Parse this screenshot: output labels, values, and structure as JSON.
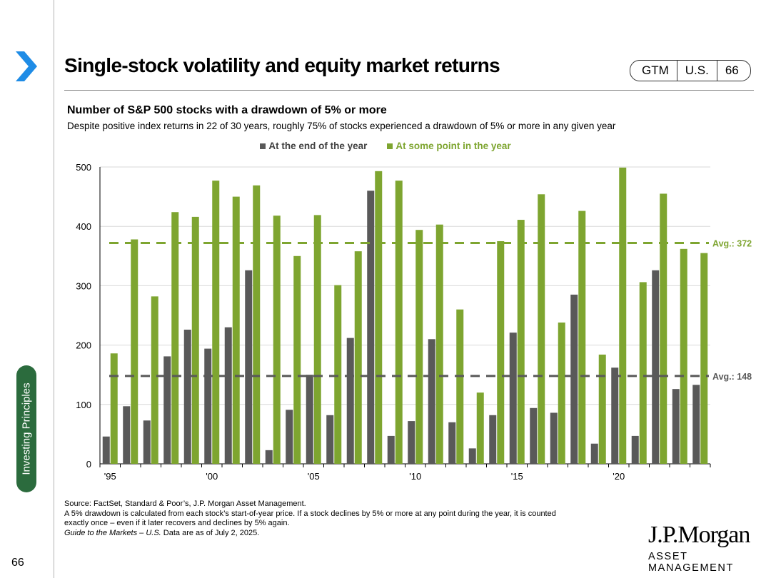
{
  "header": {
    "title": "Single-stock volatility and equity market returns",
    "tags": [
      "GTM",
      "U.S.",
      "66"
    ]
  },
  "side_label": "Investing Principles",
  "footer": {
    "source": "Source: FactSet, Standard & Poor’s, J.P. Morgan Asset Management.",
    "note_line1": "A 5% drawdown is calculated from each stock’s start-of-year price. If a stock declines by 5% or more at any point during the year, it is counted",
    "note_line2": "exactly once – even if it later recovers and declines by 5% again.",
    "guide_italic": "Guide to the Markets – U.S.",
    "guide_rest": " Data are as of July 2, 2025.",
    "page_number": "66"
  },
  "brand": {
    "name": "J.P.Morgan",
    "sub": "ASSET MANAGEMENT"
  },
  "colors": {
    "end_of_year": "#595959",
    "some_point": "#7ea530",
    "side_label_bg": "#2b6b3d",
    "arrow": "#1f8ce6"
  },
  "chart_data": {
    "type": "bar",
    "title": "Number of S&P 500 stocks with a drawdown of 5% or more",
    "subtitle": "Despite positive index returns in 22 of 30 years, roughly 75% of stocks experienced a drawdown of 5% or more in any given year",
    "categories": [
      "1995",
      "1996",
      "1997",
      "1998",
      "1999",
      "2000",
      "2001",
      "2002",
      "2003",
      "2004",
      "2005",
      "2006",
      "2007",
      "2008",
      "2009",
      "2010",
      "2011",
      "2012",
      "2013",
      "2014",
      "2015",
      "2016",
      "2017",
      "2018",
      "2019",
      "2020",
      "2021",
      "2022",
      "2023",
      "2024"
    ],
    "x_tick_labels": [
      {
        "index": 0,
        "label": "'95"
      },
      {
        "index": 5,
        "label": "'00"
      },
      {
        "index": 10,
        "label": "'05"
      },
      {
        "index": 15,
        "label": "'10"
      },
      {
        "index": 20,
        "label": "'15"
      },
      {
        "index": 25,
        "label": "'20"
      }
    ],
    "series": [
      {
        "name": "At the end of the year",
        "color": "#595959",
        "values": [
          46,
          97,
          73,
          181,
          226,
          194,
          230,
          326,
          23,
          91,
          150,
          82,
          212,
          460,
          47,
          72,
          210,
          70,
          26,
          82,
          221,
          94,
          86,
          285,
          34,
          162,
          47,
          326,
          126,
          133
        ]
      },
      {
        "name": "At some point in the year",
        "color": "#7ea530",
        "values": [
          186,
          378,
          282,
          424,
          416,
          477,
          450,
          469,
          418,
          350,
          419,
          301,
          358,
          493,
          477,
          394,
          403,
          260,
          120,
          375,
          411,
          454,
          238,
          426,
          184,
          499,
          306,
          455,
          362,
          355
        ]
      }
    ],
    "averages": [
      {
        "label": "Avg.: 372",
        "value": 372,
        "color": "#7ea530"
      },
      {
        "label": "Avg.: 148",
        "value": 148,
        "color": "#595959"
      }
    ],
    "y_ticks": [
      0,
      100,
      200,
      300,
      400,
      500
    ],
    "ylim": [
      0,
      500
    ],
    "legend_position": "top-center"
  }
}
